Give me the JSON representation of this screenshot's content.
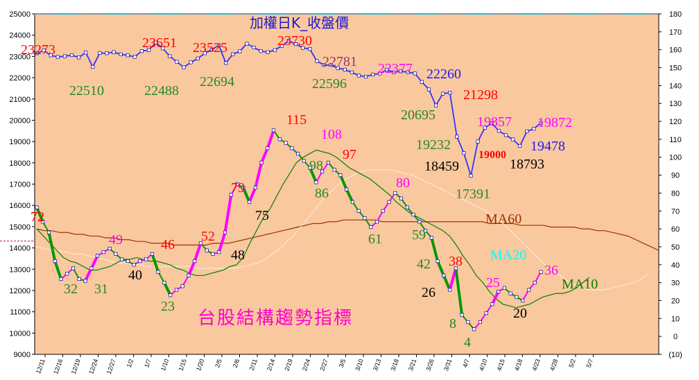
{
  "chart_data": {
    "type": "line",
    "title": "加權日K_收盤價",
    "subtitle": "台股結構趨勢指標",
    "left_axis": {
      "min": 9000,
      "max": 25000,
      "step": 1000,
      "ticks": [
        "25000",
        "24000",
        "23000",
        "22000",
        "21000",
        "20000",
        "19000",
        "18000",
        "17000",
        "16000",
        "15000",
        "14000",
        "13000",
        "12000",
        "11000",
        "10000",
        "9000"
      ]
    },
    "right_axis": {
      "min": -10,
      "max": 180,
      "step": 10,
      "ticks": [
        "180",
        "170",
        "160",
        "150",
        "140",
        "130",
        "120",
        "110",
        "100",
        "90",
        "80",
        "70",
        "60",
        "50",
        "40",
        "30",
        "20",
        "10",
        "0",
        "(10)"
      ]
    },
    "x_ticks": [
      "12/11",
      "12/16",
      "12/19",
      "12/24",
      "12/27",
      "1/2",
      "1/7",
      "1/10",
      "1/15",
      "1/20",
      "2/5",
      "2/6",
      "2/11",
      "2/14",
      "2/19",
      "2/24",
      "2/27",
      "3/5",
      "3/10",
      "3/13",
      "3/18",
      "3/21",
      "3/26",
      "3/31",
      "4/7",
      "4/10",
      "4/15",
      "4/18",
      "4/23",
      "4/28",
      "5/2",
      "5/7"
    ],
    "grid": false,
    "series": [
      {
        "name": "",
        "axis": "left",
        "color": "#1a1aff",
        "values": [
          23150,
          23280,
          23050,
          22980,
          23010,
          23060,
          22950,
          23180,
          22510,
          23160,
          23150,
          23200,
          23100,
          23050,
          22980,
          23250,
          23300,
          23651,
          23380,
          23010,
          22750,
          22488,
          22720,
          22900,
          23150,
          23320,
          23525,
          22694,
          23100,
          23240,
          23600,
          23420,
          23250,
          23200,
          23300,
          23500,
          23730,
          23580,
          23400,
          23350,
          22781,
          22600,
          22596,
          22450,
          22380,
          22250,
          22100,
          22050,
          22150,
          22200,
          22377,
          22250,
          22300,
          22260,
          22200,
          21800,
          21450,
          20695,
          21250,
          21298,
          19232,
          18459,
          17391,
          19000,
          19650,
          19857,
          19500,
          19300,
          19100,
          18793,
          19478,
          19600,
          19872
        ]
      },
      {
        "name": "",
        "axis": "right",
        "color": "#000000",
        "values": [
          72,
          64,
          58,
          42,
          32,
          35,
          38,
          32,
          31,
          38,
          45,
          47,
          49,
          46,
          43,
          42,
          40,
          42,
          43,
          46,
          36,
          30,
          23,
          26,
          28,
          34,
          42,
          52,
          48,
          46,
          47,
          58,
          79,
          85,
          83,
          75,
          83,
          97,
          105,
          115,
          110,
          108,
          105,
          102,
          98,
          94,
          86,
          92,
          97,
          93,
          90,
          82,
          75,
          70,
          66,
          61,
          64,
          70,
          75,
          80,
          77,
          72,
          68,
          64,
          59,
          55,
          42,
          34,
          26,
          38,
          12,
          8,
          4,
          8,
          13,
          18,
          25,
          27,
          24,
          22,
          20,
          26,
          30,
          36
        ]
      },
      {
        "name": "MA10",
        "axis": "right",
        "color": "#008000",
        "values": [
          60,
          56,
          52,
          48,
          44,
          42,
          41,
          39,
          37,
          37,
          38,
          39,
          41,
          43,
          43,
          44,
          43,
          42,
          42,
          41,
          40,
          38,
          37,
          35,
          34,
          34,
          35,
          36,
          37,
          39,
          40,
          44,
          52,
          59,
          66,
          71,
          78,
          85,
          91,
          97,
          100,
          102,
          104,
          103,
          102,
          100,
          97,
          94,
          92,
          90,
          88,
          85,
          82,
          79,
          75,
          72,
          69,
          67,
          65,
          63,
          61,
          59,
          56,
          51,
          45,
          40,
          34,
          30,
          25,
          21,
          18,
          17,
          16,
          17,
          18,
          20,
          22,
          23,
          24,
          24,
          25,
          27,
          30,
          33
        ]
      },
      {
        "name": "MA20",
        "axis": "right",
        "color": "#ffffff",
        "values": [
          50,
          49,
          48,
          48,
          47,
          46,
          46,
          45,
          44,
          43,
          42,
          41,
          41,
          40,
          40,
          39,
          39,
          39,
          39,
          39,
          39,
          39,
          38,
          38,
          38,
          38,
          38,
          38,
          39,
          40,
          41,
          43,
          46,
          49,
          53,
          57,
          62,
          67,
          72,
          77,
          81,
          85,
          88,
          90,
          92,
          93,
          93,
          93,
          93,
          92,
          91,
          90,
          88,
          86,
          84,
          82,
          80,
          78,
          76,
          74,
          72,
          70,
          67,
          64,
          60,
          56,
          52,
          48,
          44,
          40,
          37,
          34,
          31,
          29,
          27,
          26,
          26,
          26,
          27,
          28,
          29,
          30,
          32,
          35
        ]
      },
      {
        "name": "MA60",
        "axis": "right",
        "color": "#993300",
        "values": [
          60,
          59,
          59,
          58,
          58,
          57,
          57,
          56,
          56,
          55,
          55,
          54,
          54,
          53,
          53,
          52,
          52,
          52,
          51,
          51,
          51,
          51,
          51,
          52,
          52,
          52,
          53,
          54,
          55,
          56,
          57,
          58,
          59,
          60,
          61,
          62,
          63,
          63,
          64,
          64,
          65,
          65,
          65,
          65,
          65,
          64,
          64,
          64,
          64,
          64,
          64,
          64,
          64,
          64,
          64,
          64,
          64,
          64,
          64,
          63,
          63,
          63,
          63,
          62,
          62,
          62,
          62,
          61,
          61,
          61,
          61,
          60,
          60,
          59,
          59,
          58,
          57,
          56,
          54,
          52,
          50,
          48
        ]
      }
    ],
    "price_labels": [
      {
        "text": "23273",
        "color": "#ff0000"
      },
      {
        "text": "23651",
        "color": "#ff0000"
      },
      {
        "text": "23525",
        "color": "#ff0000"
      },
      {
        "text": "23730",
        "color": "#ff0000"
      },
      {
        "text": "22781",
        "color": "#993366"
      },
      {
        "text": "22377",
        "color": "#ff00ff"
      },
      {
        "text": "22260",
        "color": "#1a1aff"
      },
      {
        "text": "21298",
        "color": "#ff0000"
      },
      {
        "text": "19857",
        "color": "#ff00ff"
      },
      {
        "text": "19872",
        "color": "#ff00ff"
      },
      {
        "text": "22510",
        "color": "#228b22"
      },
      {
        "text": "22488",
        "color": "#228b22"
      },
      {
        "text": "22694",
        "color": "#228b22"
      },
      {
        "text": "22596",
        "color": "#228b22"
      },
      {
        "text": "20695",
        "color": "#228b22"
      },
      {
        "text": "19232",
        "color": "#228b22"
      },
      {
        "text": "18459",
        "color": "#000000"
      },
      {
        "text": "17391",
        "color": "#228b22"
      },
      {
        "text": "19000",
        "color": "#ff0000"
      },
      {
        "text": "18793",
        "color": "#000000"
      },
      {
        "text": "19478",
        "color": "#1a1aff"
      }
    ],
    "indicator_labels": [
      {
        "text": "72",
        "color": "#ff0000"
      },
      {
        "text": "32",
        "color": "#228b22"
      },
      {
        "text": "31",
        "color": "#228b22"
      },
      {
        "text": "49",
        "color": "#ff00ff"
      },
      {
        "text": "40",
        "color": "#000000"
      },
      {
        "text": "46",
        "color": "#ff0000"
      },
      {
        "text": "23",
        "color": "#228b22"
      },
      {
        "text": "52",
        "color": "#ff0000"
      },
      {
        "text": "48",
        "color": "#000000"
      },
      {
        "text": "79",
        "color": "#ff0000"
      },
      {
        "text": "75",
        "color": "#000000"
      },
      {
        "text": "115",
        "color": "#ff0000"
      },
      {
        "text": "108",
        "color": "#ff00ff"
      },
      {
        "text": "98",
        "color": "#228b22"
      },
      {
        "text": "86",
        "color": "#228b22"
      },
      {
        "text": "97",
        "color": "#ff0000"
      },
      {
        "text": "80",
        "color": "#ff00ff"
      },
      {
        "text": "61",
        "color": "#228b22"
      },
      {
        "text": "59",
        "color": "#228b22"
      },
      {
        "text": "42",
        "color": "#228b22"
      },
      {
        "text": "38",
        "color": "#ff0000"
      },
      {
        "text": "26",
        "color": "#000000"
      },
      {
        "text": "8",
        "color": "#228b22"
      },
      {
        "text": "4",
        "color": "#228b22"
      },
      {
        "text": "25",
        "color": "#ff00ff"
      },
      {
        "text": "20",
        "color": "#000000"
      },
      {
        "text": "36",
        "color": "#ff00ff"
      }
    ],
    "series_labels": [
      {
        "text": "MA60",
        "color": "#993300"
      },
      {
        "text": "MA20",
        "color": "#00ffff"
      },
      {
        "text": "MA10",
        "color": "#008000"
      }
    ]
  }
}
